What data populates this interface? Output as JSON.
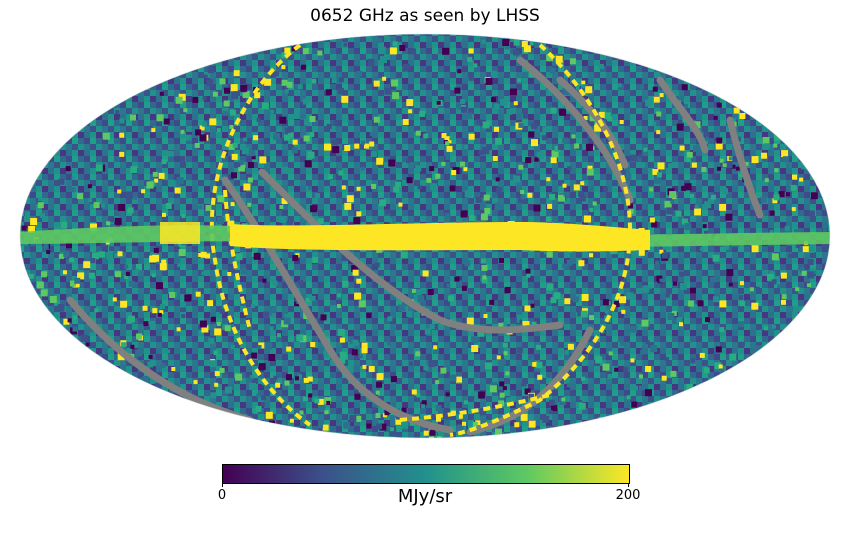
{
  "title": "0652 GHz as seen by LHSS",
  "map": {
    "projection": "mollweide",
    "colormap": "viridis",
    "masked_color": "#808080",
    "features": [
      "galactic-plane-band",
      "scan-arcs",
      "masked-stripes"
    ]
  },
  "colorbar": {
    "min_label": "0",
    "max_label": "200",
    "unit": "MJy/sr",
    "range": [
      0,
      200
    ],
    "stops": [
      "#440154",
      "#3b528b",
      "#21918c",
      "#5ec962",
      "#fde725"
    ]
  }
}
